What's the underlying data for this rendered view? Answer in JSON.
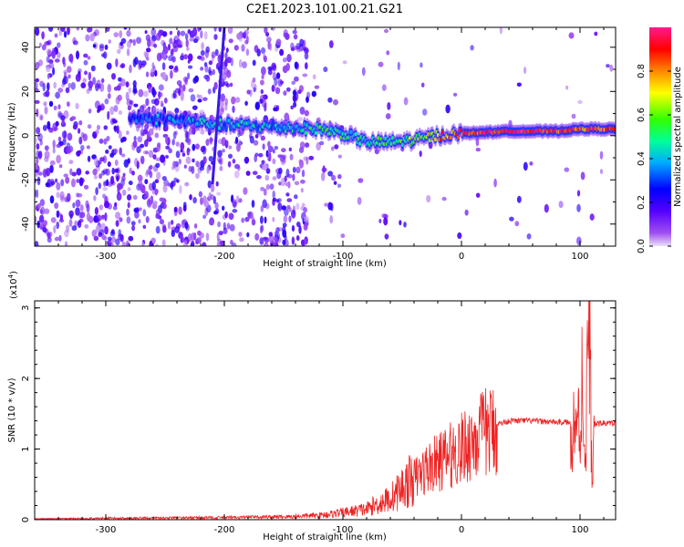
{
  "title": "C2E1.2023.101.00.21.G21",
  "chart_data": [
    {
      "type": "heatmap",
      "xlabel": "Height of straight line (km)",
      "ylabel": "Frequency (Hz)",
      "xlim": [
        -360,
        130
      ],
      "ylim": [
        -50,
        49
      ],
      "xticks": [
        -300,
        -200,
        -100,
        0,
        100
      ],
      "yticks": [
        -40,
        -20,
        0,
        20,
        40
      ],
      "colorbar": {
        "label": "Normalized spectral amplitude",
        "range": [
          0,
          1
        ],
        "ticks": [
          0.0,
          0.2,
          0.4,
          0.6,
          0.8
        ],
        "colormap": [
          "#e6d6f7",
          "#7700ff",
          "#0000ff",
          "#00c8ff",
          "#00ff00",
          "#ffff00",
          "#ff7700",
          "#ff0000",
          "#ff1493"
        ]
      },
      "ridge": [
        {
          "x": -280,
          "y": 8,
          "amp": 0.3
        },
        {
          "x": -240,
          "y": 7,
          "amp": 0.35
        },
        {
          "x": -200,
          "y": 5,
          "amp": 0.4
        },
        {
          "x": -160,
          "y": 4,
          "amp": 0.4
        },
        {
          "x": -120,
          "y": 3,
          "amp": 0.5
        },
        {
          "x": -100,
          "y": 1,
          "amp": 0.5
        },
        {
          "x": -80,
          "y": -3,
          "amp": 0.45
        },
        {
          "x": -60,
          "y": -3,
          "amp": 0.5
        },
        {
          "x": -40,
          "y": -2,
          "amp": 0.55
        },
        {
          "x": -20,
          "y": 0,
          "amp": 0.75
        },
        {
          "x": 0,
          "y": 1,
          "amp": 0.9
        },
        {
          "x": 40,
          "y": 2,
          "amp": 0.95
        },
        {
          "x": 80,
          "y": 2,
          "amp": 0.9
        },
        {
          "x": 100,
          "y": 3,
          "amp": 0.85
        },
        {
          "x": 130,
          "y": 3,
          "amp": 0.85
        }
      ],
      "streak": {
        "x0": -210,
        "y0": -22,
        "x1": -200,
        "y1": 49
      }
    },
    {
      "type": "line",
      "xlabel": "Height of straight line (km)",
      "ylabel": "SNR (10 * v/v)",
      "multiplier_label": "(x10",
      "multiplier_exp": "4",
      "multiplier_close": ")",
      "xlim": [
        -360,
        130
      ],
      "ylim": [
        0,
        3.1
      ],
      "xticks": [
        -300,
        -200,
        -100,
        0,
        100
      ],
      "yticks": [
        0,
        1,
        2,
        3
      ],
      "series": [
        {
          "color": "#ee2222",
          "x": [
            -360,
            -300,
            -200,
            -150,
            -120,
            -100,
            -80,
            -60,
            -50,
            -40,
            -30,
            -20,
            -10,
            0,
            10,
            20,
            30,
            40,
            60,
            80,
            90,
            95,
            98,
            100,
            102,
            104,
            106,
            108,
            110,
            112,
            120,
            130
          ],
          "y": [
            0.01,
            0.02,
            0.03,
            0.04,
            0.06,
            0.1,
            0.15,
            0.3,
            0.45,
            0.6,
            0.75,
            0.85,
            0.95,
            1.05,
            1.2,
            1.3,
            1.35,
            1.4,
            1.4,
            1.38,
            1.38,
            1.3,
            1.5,
            1.1,
            2.3,
            0.6,
            1.9,
            3.0,
            0.4,
            1.35,
            1.37,
            1.36
          ]
        }
      ]
    }
  ]
}
